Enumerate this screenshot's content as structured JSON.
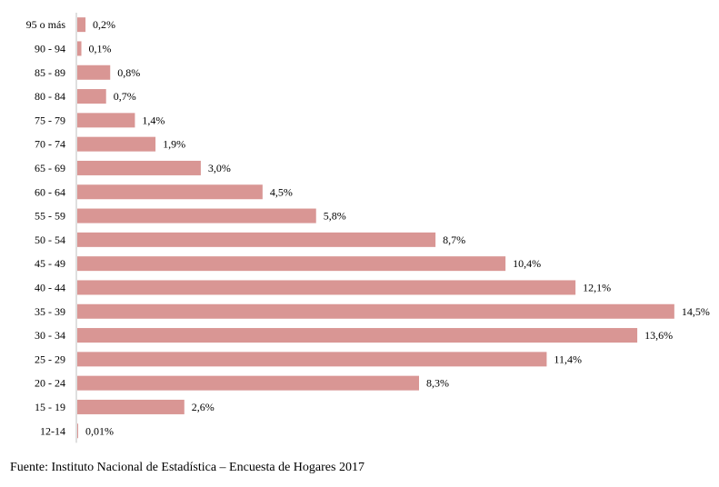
{
  "chart_data": {
    "type": "bar",
    "orientation": "horizontal",
    "categories": [
      "95 o más",
      "90 - 94",
      "85 - 89",
      "80 - 84",
      "75 - 79",
      "70 - 74",
      "65 - 69",
      "60 - 64",
      "55 - 59",
      "50 - 54",
      "45 - 49",
      "40 - 44",
      "35 - 39",
      "30 - 34",
      "25 - 29",
      "20 - 24",
      "15 - 19",
      "12-14"
    ],
    "values": [
      0.2,
      0.1,
      0.8,
      0.7,
      1.4,
      1.9,
      3.0,
      4.5,
      5.8,
      8.7,
      10.4,
      12.1,
      14.5,
      13.6,
      11.4,
      8.3,
      2.6,
      0.01
    ],
    "value_labels": [
      "0,2%",
      "0,1%",
      "0,8%",
      "0,7%",
      "1,4%",
      "1,9%",
      "3,0%",
      "4,5%",
      "5,8%",
      "8,7%",
      "10,4%",
      "12,1%",
      "14,5%",
      "13,6%",
      "11,4%",
      "8,3%",
      "2,6%",
      "0,01%"
    ],
    "title": "",
    "xlabel": "",
    "ylabel": "",
    "xlim": [
      0,
      15
    ],
    "grid": false,
    "legend": "none",
    "bar_color": "#d99694",
    "axis_color": "#bfbfbf"
  },
  "source": "Fuente: Instituto Nacional de Estadística – Encuesta de Hogares 2017"
}
